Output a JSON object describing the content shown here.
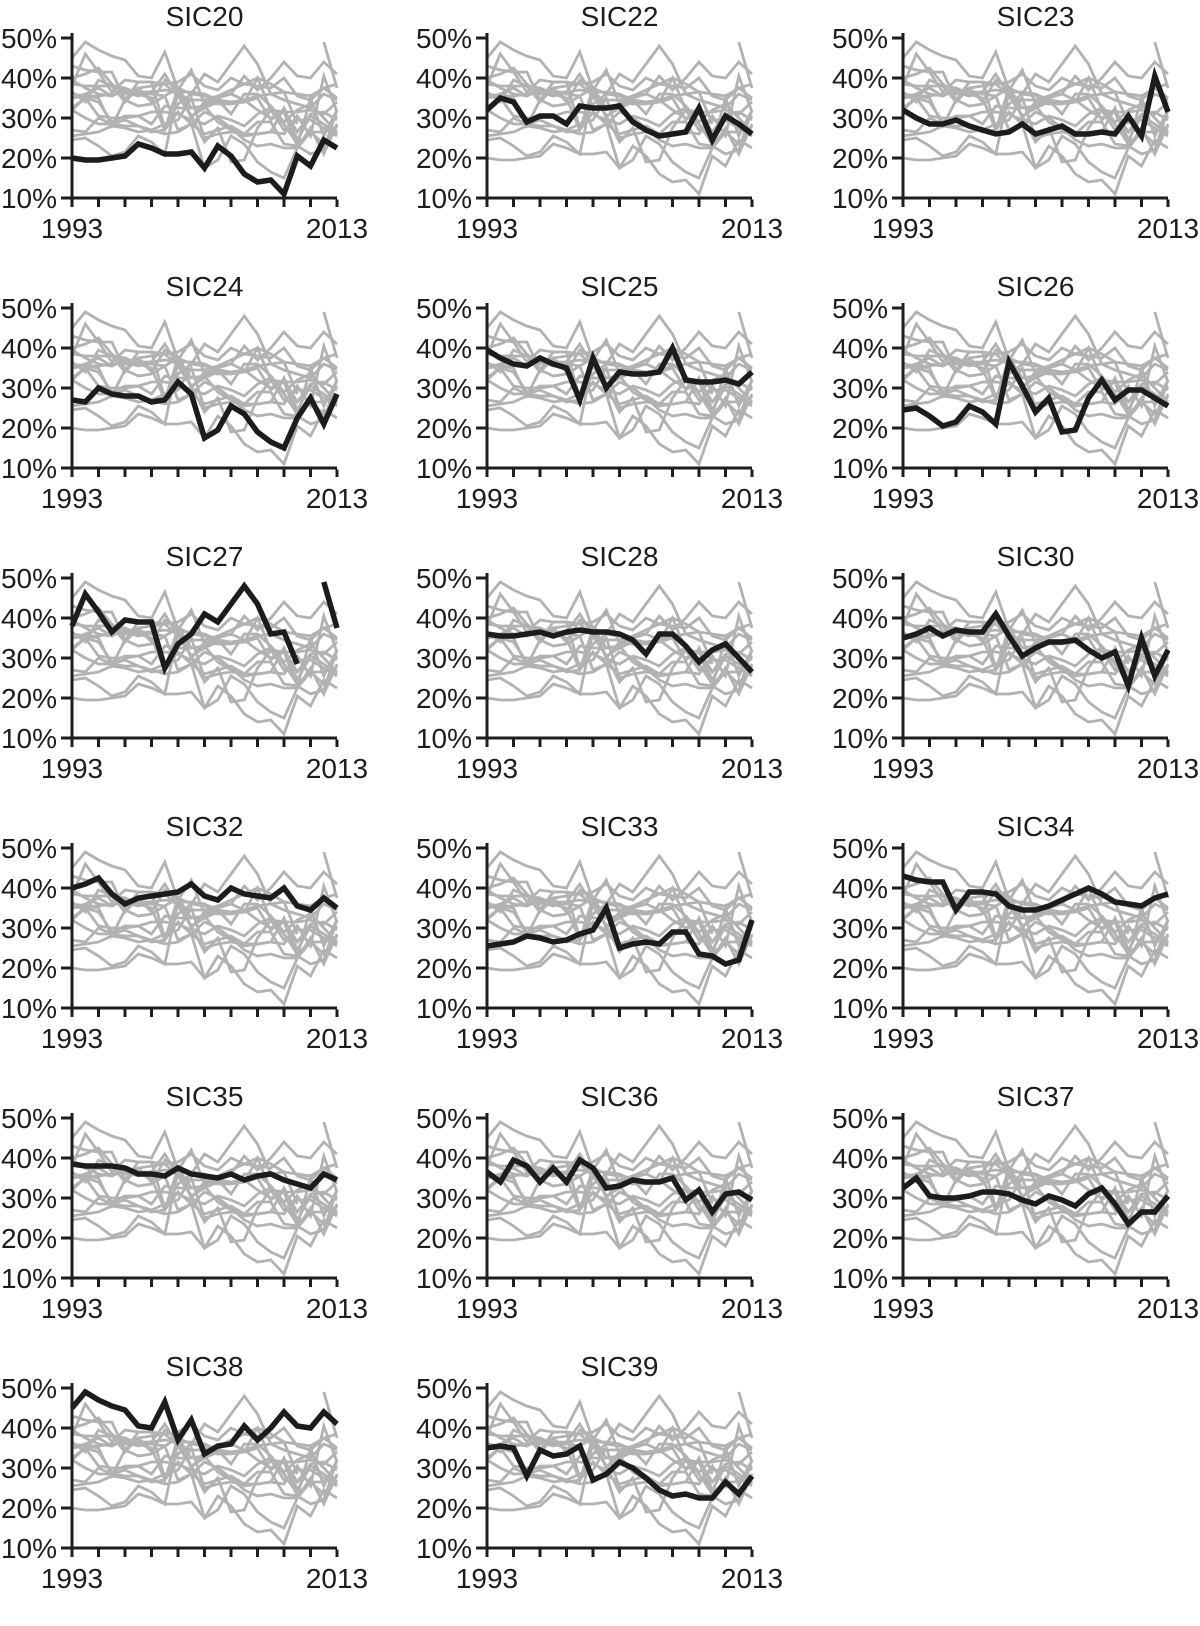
{
  "figure": {
    "description": "Small-multiples line chart grid; each panel highlights one SIC industry in black over all industries in gray",
    "colors": {
      "highlight": "#1c1c1c",
      "background_lines": "#b2b2b2",
      "axis": "#1d1d1d",
      "text": "#1d1d1d",
      "page_bg": "#ffffff"
    },
    "y_tick_labels": [
      "50%",
      "40%",
      "30%",
      "20%",
      "10%"
    ],
    "x_start_label": "1993",
    "x_end_label": "2013"
  },
  "chart_data": {
    "type": "line",
    "layout": "17 small-multiple panels (3 columns x 6 rows); in each panel all 17 industry series are drawn in gray and the panel's own industry is drawn in thick black; no legend; no grid",
    "x": [
      1993,
      1994,
      1995,
      1996,
      1997,
      1998,
      1999,
      2000,
      2001,
      2002,
      2003,
      2004,
      2005,
      2006,
      2007,
      2008,
      2009,
      2010,
      2011,
      2012,
      2013
    ],
    "xlim": [
      1993,
      2013
    ],
    "ylim": [
      10,
      51.5
    ],
    "yticks": [
      10,
      20,
      30,
      40,
      50
    ],
    "ytick_format": "percent",
    "xtick_marks_every_years": 2,
    "x_labeled_ticks": [
      1993,
      2013
    ],
    "panels": [
      "SIC20",
      "SIC22",
      "SIC23",
      "SIC24",
      "SIC25",
      "SIC26",
      "SIC27",
      "SIC28",
      "SIC30",
      "SIC32",
      "SIC33",
      "SIC34",
      "SIC35",
      "SIC36",
      "SIC37",
      "SIC38",
      "SIC39"
    ],
    "series": [
      {
        "name": "SIC20",
        "values": [
          20,
          19.5,
          19.5,
          20,
          20.5,
          23.5,
          22.5,
          21,
          21,
          21.5,
          17.5,
          23,
          20.5,
          16,
          14,
          14.5,
          11,
          20.5,
          18,
          24.5,
          22.5
        ]
      },
      {
        "name": "SIC22",
        "values": [
          32,
          35,
          34,
          29,
          30.5,
          30.5,
          28.5,
          33,
          32.5,
          32.5,
          33,
          29,
          27,
          25.5,
          26,
          26.5,
          32.5,
          24.5,
          30.5,
          28.5,
          26
        ]
      },
      {
        "name": "SIC23",
        "values": [
          32,
          30,
          28.5,
          28.5,
          29.5,
          28,
          27,
          26,
          26.5,
          28.5,
          26,
          27,
          28,
          26,
          26,
          26.5,
          26,
          30.5,
          25.5,
          40.5,
          31.5
        ]
      },
      {
        "name": "SIC24",
        "values": [
          27,
          26.5,
          30,
          28.5,
          28,
          28,
          26.5,
          27,
          31.5,
          28.5,
          17.5,
          19.5,
          25.5,
          23.5,
          19,
          16.5,
          15,
          22.5,
          27.5,
          21,
          28.5
        ]
      },
      {
        "name": "SIC25",
        "values": [
          39.5,
          37.5,
          36,
          35.5,
          37.5,
          36,
          35,
          27,
          37.5,
          30,
          34,
          33.5,
          33.5,
          34,
          40,
          32,
          31.5,
          31.5,
          32,
          31,
          34
        ]
      },
      {
        "name": "SIC26",
        "values": [
          24.5,
          25,
          23,
          20.5,
          21.5,
          25.5,
          24,
          21,
          36.5,
          30.5,
          24,
          27.5,
          19,
          19.5,
          27.5,
          32,
          27,
          29.5,
          29.5,
          27.5,
          25.5
        ]
      },
      {
        "name": "SIC27",
        "values": [
          38,
          46,
          41.5,
          36.5,
          39.5,
          39,
          39,
          27.5,
          33.5,
          36,
          41,
          39,
          43.5,
          48,
          43.5,
          36,
          36.5,
          28.5,
          null,
          49,
          37.5
        ]
      },
      {
        "name": "SIC28",
        "values": [
          36,
          35.5,
          35.5,
          36,
          36.5,
          35.5,
          36.5,
          37,
          36.5,
          36.5,
          36,
          34.5,
          31,
          36,
          36,
          33,
          29,
          32,
          33.5,
          30,
          26.5
        ]
      },
      {
        "name": "SIC30",
        "values": [
          35,
          36,
          37.5,
          35.5,
          37,
          36.5,
          36.5,
          41,
          35.5,
          30.5,
          32.5,
          34,
          34,
          34.5,
          32,
          30,
          31.5,
          23,
          35,
          25.5,
          32
        ]
      },
      {
        "name": "SIC32",
        "values": [
          40,
          41,
          42.5,
          38.5,
          36,
          37.5,
          38,
          38.5,
          39,
          41,
          38,
          37,
          40,
          38.5,
          38,
          37.5,
          40,
          35.5,
          34.5,
          37.5,
          35
        ]
      },
      {
        "name": "SIC33",
        "values": [
          25.5,
          26,
          26.5,
          28,
          27.5,
          26.5,
          27,
          28.5,
          29.5,
          35,
          25,
          26,
          26.5,
          26,
          29,
          29,
          23.5,
          23,
          21,
          22,
          32
        ]
      },
      {
        "name": "SIC34",
        "values": [
          43,
          42,
          41.5,
          41.5,
          34.5,
          39,
          39,
          38.5,
          35.5,
          34.5,
          34.5,
          35.5,
          37,
          38.5,
          40,
          38.5,
          36.5,
          36,
          35.5,
          37.5,
          38.5
        ]
      },
      {
        "name": "SIC35",
        "values": [
          38.5,
          38,
          38,
          38,
          37.5,
          36,
          36,
          35.5,
          37.5,
          36,
          35.5,
          35,
          36,
          34.5,
          35.5,
          36,
          34.5,
          33.5,
          32.5,
          36,
          34.5
        ]
      },
      {
        "name": "SIC36",
        "values": [
          36.5,
          34,
          39.5,
          38,
          34,
          37.5,
          34,
          39.5,
          37.5,
          32.5,
          33,
          34.5,
          34,
          34,
          35,
          29.5,
          32,
          26.5,
          31,
          31.5,
          29.5
        ]
      },
      {
        "name": "SIC37",
        "values": [
          32.5,
          35,
          30.5,
          30,
          30,
          30.5,
          31.5,
          31.5,
          31,
          29.5,
          28.5,
          30.5,
          29.5,
          28,
          31,
          32.5,
          28.5,
          23.5,
          26.5,
          26.5,
          30.5
        ]
      },
      {
        "name": "SIC38",
        "values": [
          45,
          49,
          47,
          45.5,
          44.5,
          40.5,
          40,
          46.5,
          37,
          42,
          33.5,
          35.5,
          36,
          40.5,
          37,
          40,
          44,
          40.5,
          40,
          44,
          41
        ]
      },
      {
        "name": "SIC39",
        "values": [
          35,
          35.5,
          35,
          28,
          34.5,
          33,
          33.5,
          35.5,
          27,
          28.5,
          31.5,
          30,
          27.5,
          24.5,
          23,
          23.5,
          22.5,
          22.5,
          26.5,
          23.5,
          28
        ]
      }
    ]
  }
}
